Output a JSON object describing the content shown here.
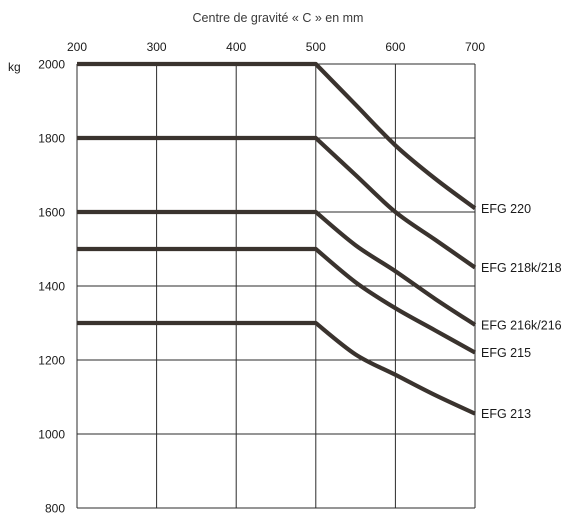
{
  "chart_data": {
    "type": "line",
    "title": "",
    "xlabel": "Centre de gravité « C » en mm",
    "ylabel": "kg",
    "xlim": [
      200,
      700
    ],
    "ylim": [
      800,
      2000
    ],
    "x_ticks": [
      200,
      300,
      400,
      500,
      600,
      700
    ],
    "y_ticks": [
      800,
      1000,
      1200,
      1400,
      1600,
      1800,
      2000
    ],
    "x_axis_position": "top",
    "grid": true,
    "series": [
      {
        "name": "EFG 220",
        "x": [
          200,
          500,
          550,
          600,
          650,
          700
        ],
        "y": [
          2000,
          2000,
          1890,
          1780,
          1690,
          1610
        ]
      },
      {
        "name": "EFG 218k/218",
        "x": [
          200,
          500,
          550,
          600,
          650,
          700
        ],
        "y": [
          1800,
          1800,
          1700,
          1600,
          1525,
          1450
        ]
      },
      {
        "name": "EFG 216k/216",
        "x": [
          200,
          500,
          550,
          600,
          650,
          700
        ],
        "y": [
          1600,
          1600,
          1510,
          1440,
          1365,
          1295
        ]
      },
      {
        "name": "EFG 215",
        "x": [
          200,
          500,
          550,
          600,
          650,
          700
        ],
        "y": [
          1500,
          1500,
          1410,
          1340,
          1280,
          1220
        ]
      },
      {
        "name": "EFG 213",
        "x": [
          200,
          500,
          550,
          600,
          650,
          700
        ],
        "y": [
          1300,
          1300,
          1215,
          1160,
          1105,
          1055
        ]
      }
    ]
  }
}
